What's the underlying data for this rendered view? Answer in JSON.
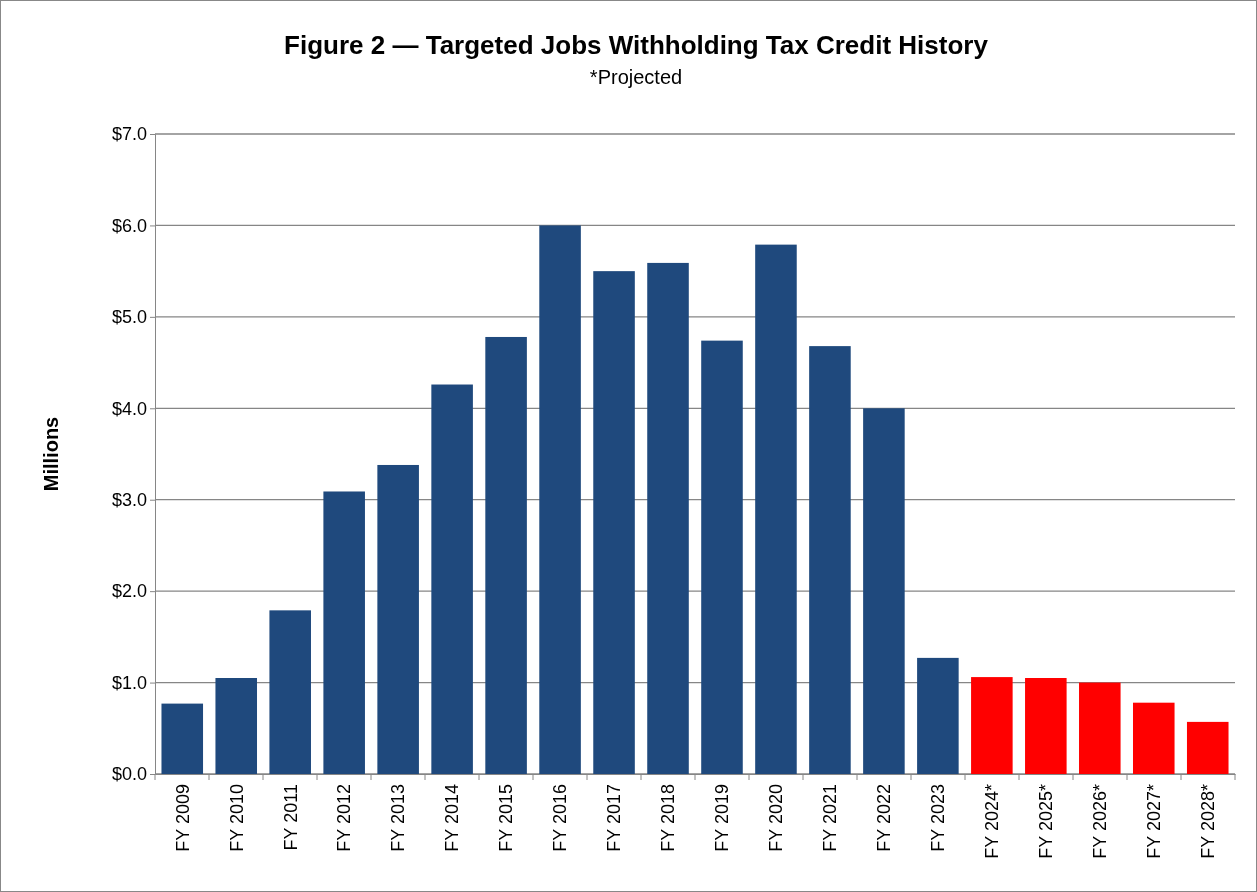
{
  "chart_data": {
    "type": "bar",
    "title": "Figure 2 — Targeted Jobs Withholding Tax Credit History",
    "subtitle": "*Projected",
    "ylabel": "Millions",
    "categories": [
      "FY 2009",
      "FY 2010",
      "FY 2011",
      "FY 2012",
      "FY 2013",
      "FY 2014",
      "FY 2015",
      "FY 2016",
      "FY 2017",
      "FY 2018",
      "FY 2019",
      "FY 2020",
      "FY 2021",
      "FY 2022",
      "FY 2023",
      "FY 2024*",
      "FY 2025*",
      "FY 2026*",
      "FY 2027*",
      "FY 2028*"
    ],
    "values": [
      0.77,
      1.05,
      1.79,
      3.09,
      3.38,
      4.26,
      4.78,
      6.0,
      5.5,
      5.59,
      4.74,
      5.79,
      4.68,
      4.0,
      1.27,
      1.06,
      1.05,
      1.0,
      0.78,
      0.57
    ],
    "colors": [
      "#1f497d",
      "#1f497d",
      "#1f497d",
      "#1f497d",
      "#1f497d",
      "#1f497d",
      "#1f497d",
      "#1f497d",
      "#1f497d",
      "#1f497d",
      "#1f497d",
      "#1f497d",
      "#1f497d",
      "#1f497d",
      "#1f497d",
      "#ff0000",
      "#ff0000",
      "#ff0000",
      "#ff0000",
      "#ff0000"
    ],
    "ylim": [
      0,
      7
    ],
    "yticks": [
      {
        "value": 0,
        "label": "$0.0"
      },
      {
        "value": 1,
        "label": "$1.0"
      },
      {
        "value": 2,
        "label": "$2.0"
      },
      {
        "value": 3,
        "label": "$3.0"
      },
      {
        "value": 4,
        "label": "$4.0"
      },
      {
        "value": 5,
        "label": "$5.0"
      },
      {
        "value": 6,
        "label": "$6.0"
      },
      {
        "value": 7,
        "label": "$7.0"
      }
    ],
    "grid": "y"
  }
}
